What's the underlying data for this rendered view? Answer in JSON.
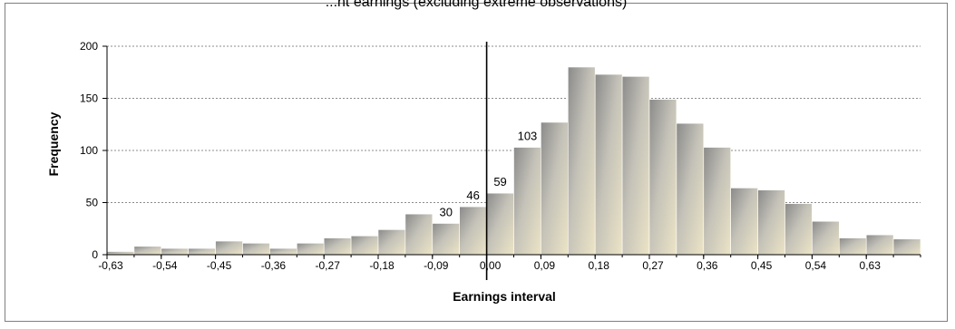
{
  "chart_data": {
    "type": "bar",
    "title": "...nt earnings (excluding extreme observations)",
    "xlabel": "Earnings interval",
    "ylabel": "Frequency",
    "ylim": [
      0,
      200
    ],
    "yticks": [
      "0",
      "50",
      "100",
      "150",
      "200"
    ],
    "grid": true,
    "bin_width": 0.045,
    "x_start": -0.63,
    "x_ticks": [
      "-0,63",
      "-0,54",
      "-0,45",
      "-0,36",
      "-0,27",
      "-0,18",
      "-0,09",
      "0,00",
      "0,09",
      "0,18",
      "0,27",
      "0,36",
      "0,45",
      "0,54",
      "0,63"
    ],
    "x_tick_values": [
      -0.63,
      -0.54,
      -0.45,
      -0.36,
      -0.27,
      -0.18,
      -0.09,
      0.0,
      0.09,
      0.18,
      0.27,
      0.36,
      0.45,
      0.54,
      0.63
    ],
    "zero_line": 0.0,
    "values": [
      3,
      8,
      6,
      6,
      13,
      11,
      6,
      11,
      16,
      18,
      24,
      39,
      30,
      46,
      59,
      103,
      127,
      180,
      173,
      171,
      149,
      126,
      103,
      64,
      62,
      49,
      32,
      16,
      19,
      15
    ],
    "data_labels": [
      {
        "index": 12,
        "text": "30"
      },
      {
        "index": 13,
        "text": "46"
      },
      {
        "index": 14,
        "text": "59"
      },
      {
        "index": 15,
        "text": "103"
      }
    ]
  }
}
